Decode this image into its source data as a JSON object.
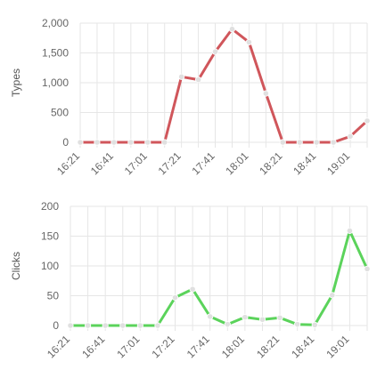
{
  "chart_data": [
    {
      "type": "line",
      "ylabel": "Types",
      "ylim": [
        0,
        2000
      ],
      "yticks": [
        0,
        500,
        1000,
        1500,
        2000
      ],
      "ytick_labels": [
        "0",
        "500",
        "1,000",
        "1,500",
        "2,000"
      ],
      "xtick_labels": [
        "16:21",
        "16:41",
        "17:01",
        "17:21",
        "17:41",
        "18:01",
        "18:21",
        "18:41",
        "19:01"
      ],
      "grid": true,
      "color": "#d0565b",
      "series": [
        {
          "x": [
            "16:21",
            "16:31",
            "16:41",
            "16:51",
            "17:01",
            "17:11",
            "17:21",
            "17:31",
            "17:41",
            "17:51",
            "18:01",
            "18:11",
            "18:21",
            "18:31",
            "18:41",
            "18:51",
            "19:01",
            "19:11"
          ],
          "values": [
            0,
            0,
            0,
            0,
            0,
            0,
            1100,
            1050,
            1520,
            1900,
            1680,
            820,
            0,
            0,
            0,
            0,
            100,
            360
          ]
        }
      ]
    },
    {
      "type": "line",
      "ylabel": "Clicks",
      "ylim": [
        0,
        200
      ],
      "yticks": [
        0,
        50,
        100,
        150,
        200
      ],
      "ytick_labels": [
        "0",
        "50",
        "100",
        "150",
        "200"
      ],
      "xtick_labels": [
        "16:21",
        "16:41",
        "17:01",
        "17:21",
        "17:41",
        "18:01",
        "18:21",
        "18:41",
        "19:01"
      ],
      "grid": true,
      "color": "#5bd35b",
      "series": [
        {
          "x": [
            "16:21",
            "16:31",
            "16:41",
            "16:51",
            "17:01",
            "17:11",
            "17:21",
            "17:31",
            "17:41",
            "17:51",
            "18:01",
            "18:11",
            "18:21",
            "18:31",
            "18:41",
            "18:51",
            "19:01",
            "19:11"
          ],
          "values": [
            0,
            0,
            0,
            0,
            0,
            0,
            47,
            61,
            15,
            2,
            14,
            10,
            13,
            2,
            1,
            51,
            159,
            95
          ]
        }
      ]
    }
  ]
}
